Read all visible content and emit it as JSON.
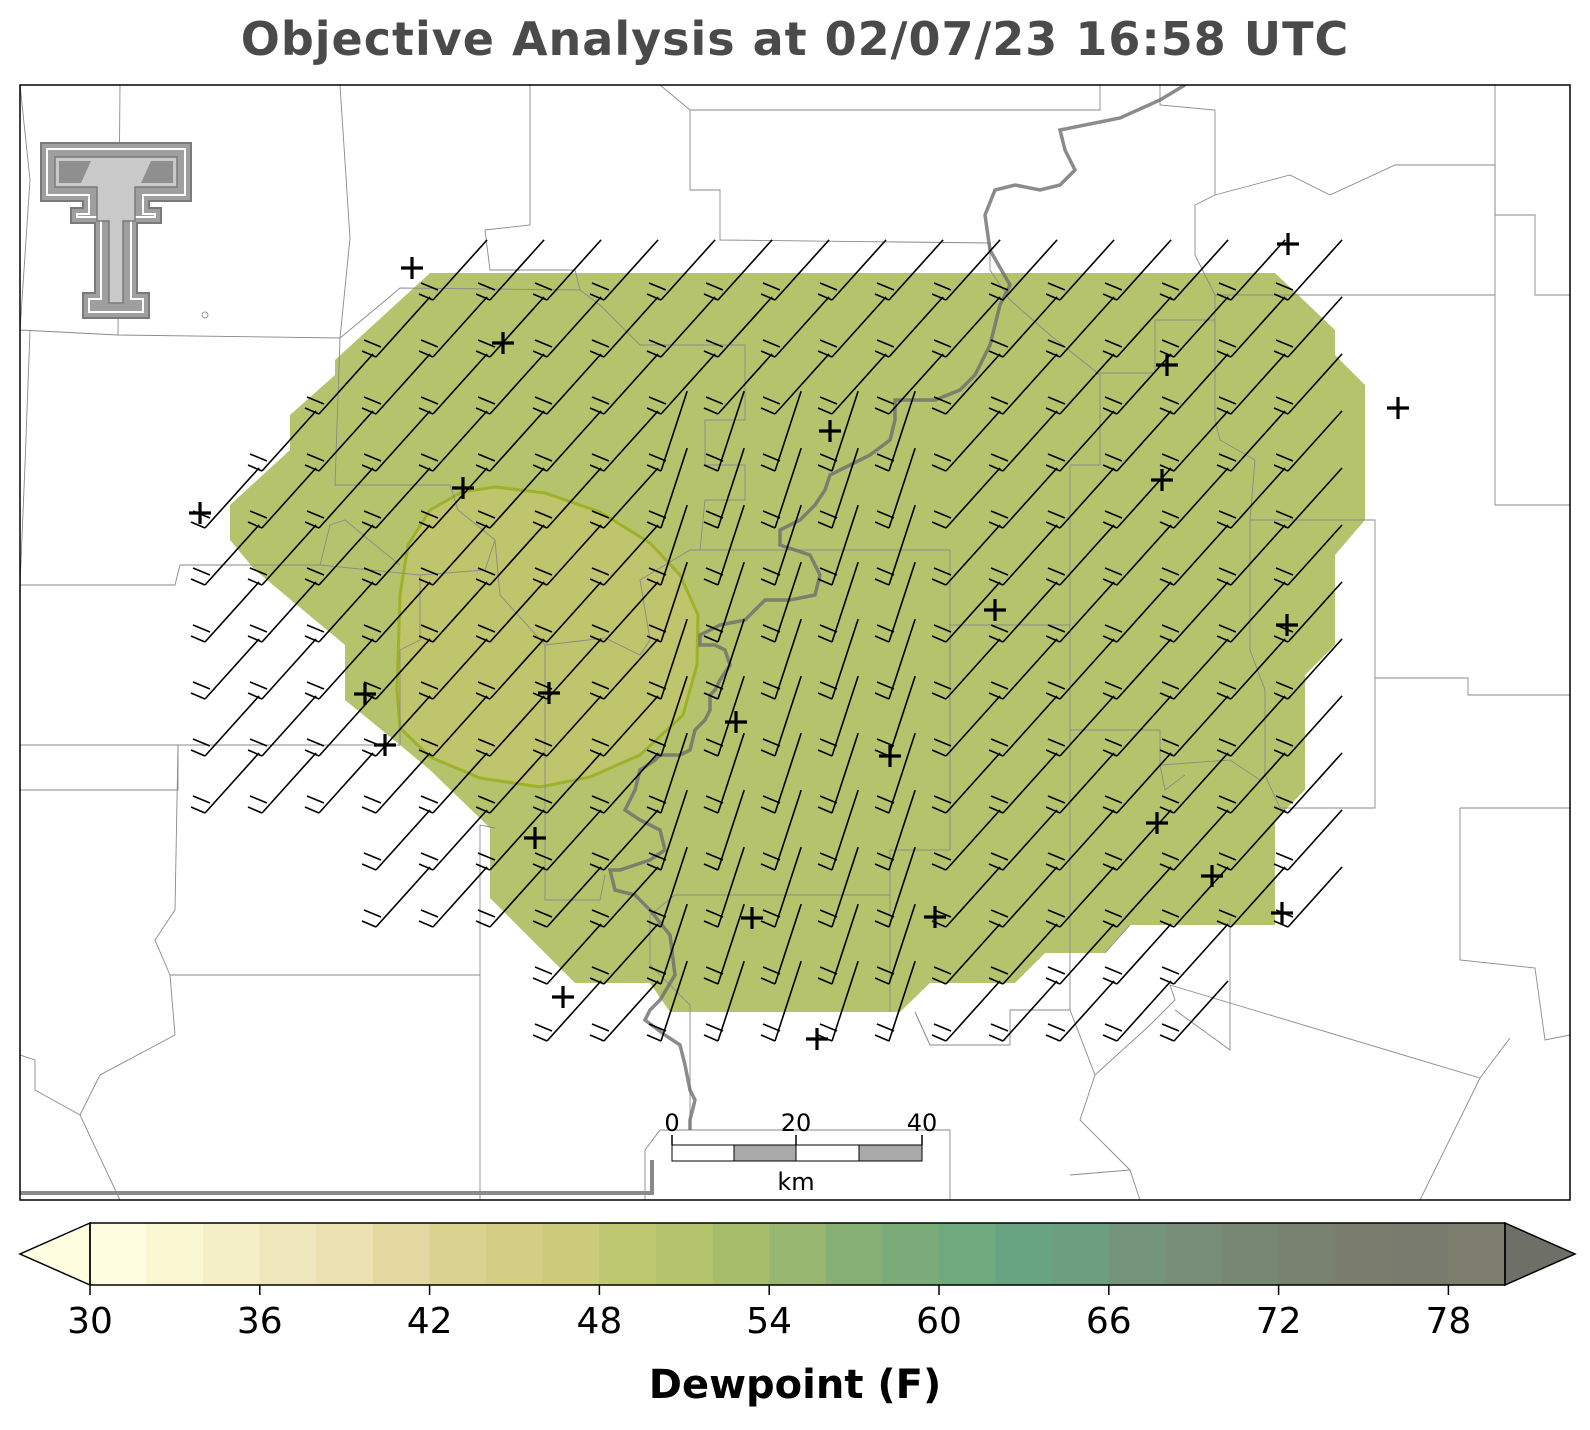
{
  "title": "Objective Analysis at 02/07/23 16:58 UTC",
  "field": {
    "variable_label": "Dewpoint (F)",
    "analysis_fill": "#b5c46c",
    "inner_contour_fill": "#bec56c",
    "inner_contour_stroke": "#9fb02a"
  },
  "colorbar": {
    "label": "Dewpoint (F)",
    "ticks": [
      30,
      36,
      42,
      48,
      54,
      60,
      66,
      72,
      78
    ],
    "min": 30,
    "max": 80,
    "step": 2,
    "extend": "both",
    "colors": [
      "#fffde0",
      "#f9f6d2",
      "#f4efc7",
      "#efe7bc",
      "#eae0b0",
      "#e3d89f",
      "#dad38f",
      "#d4ce85",
      "#cbcb79",
      "#bec870",
      "#b5c46c",
      "#a6bd6b",
      "#97b770",
      "#86b073",
      "#7aab78",
      "#6faa7e",
      "#68a481",
      "#6e9e80",
      "#75947c",
      "#788d77",
      "#788772",
      "#79826e",
      "#7b7d6c",
      "#787a6d",
      "#7c7d6c"
    ],
    "extend_low_color": "#fffde0",
    "extend_high_color": "#6e7068"
  },
  "scale_bar": {
    "labels": [
      "0",
      "20",
      "40"
    ],
    "unit": "km"
  },
  "logo": {
    "name": "Texas Tech Double T"
  },
  "wind": {
    "direction_from_deg": 220,
    "barb_style": "10 kt half-flag style"
  }
}
